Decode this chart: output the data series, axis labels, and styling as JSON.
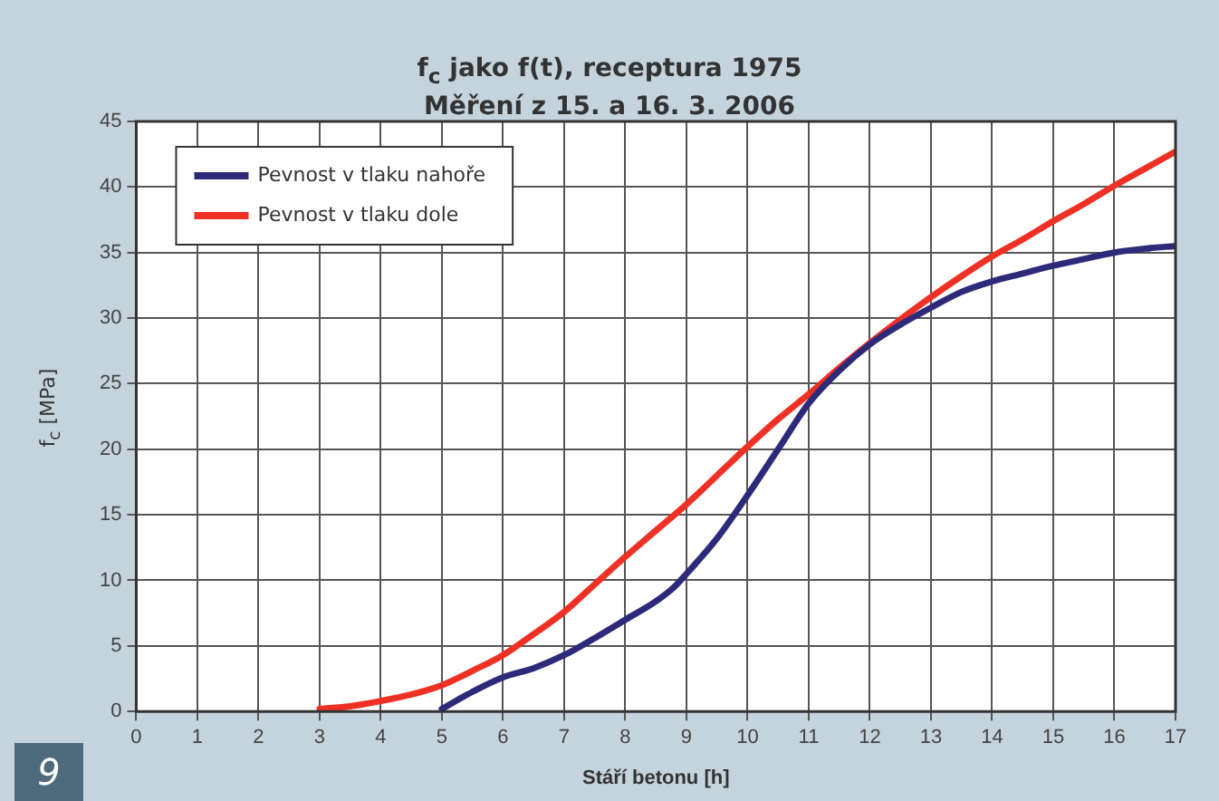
{
  "chart_data": {
    "type": "line",
    "title": "f$_{c}$ jako f(t), receptura 1975",
    "subtitle": "Měření z 15. a 16. 3. 2006",
    "xlabel": "Stáří betonu [h]",
    "ylabel": "f$_{c}$ [MPa]",
    "annotations": [
      "9"
    ],
    "xlim": [
      0,
      17
    ],
    "xticks": [
      0,
      1,
      2,
      3,
      4,
      5,
      6,
      7,
      8,
      9,
      10,
      11,
      12,
      13,
      14,
      15,
      16,
      17
    ],
    "ylim": [
      0,
      45
    ],
    "yticks": [
      0,
      5,
      10,
      15,
      20,
      25,
      30,
      35,
      40,
      45
    ],
    "grid": true,
    "legend": "top left",
    "marker": "none",
    "line_style": "solid",
    "series": [
      {
        "name": "Pevnost v tlaku nahoře",
        "color": "#2e2a7a",
        "x": [
          5,
          5.5,
          6,
          6.5,
          7,
          7.5,
          8,
          8.5,
          8.8,
          9,
          9.5,
          10,
          10.5,
          11,
          11.5,
          12,
          12.5,
          13,
          13.5,
          14,
          14.5,
          15,
          15.5,
          16,
          16.5,
          17
        ],
        "values": [
          0.2,
          1.5,
          2.6,
          3.3,
          4.3,
          5.6,
          7.0,
          8.4,
          9.5,
          10.5,
          13.2,
          16.5,
          20,
          23.5,
          26,
          28,
          29.5,
          30.8,
          32.0,
          32.8,
          33.4,
          34.0,
          34.5,
          35.0,
          35.3,
          35.5
        ]
      },
      {
        "name": "Pevnost v tlaku dole",
        "color": "#ee3124",
        "x": [
          3,
          3.5,
          4,
          4.5,
          5,
          5.5,
          6,
          6.5,
          7,
          7.5,
          8,
          8.5,
          9,
          9.5,
          10,
          10.5,
          11,
          11.5,
          12,
          12.5,
          13,
          13.5,
          14,
          14.5,
          15,
          15.5,
          16,
          16.5,
          17
        ],
        "values": [
          0.2,
          0.4,
          0.8,
          1.3,
          2.0,
          3.1,
          4.3,
          5.9,
          7.6,
          9.7,
          11.8,
          13.8,
          15.8,
          18.0,
          20.2,
          22.3,
          24.2,
          26.2,
          28.1,
          29.9,
          31.6,
          33.2,
          34.7,
          36.0,
          37.4,
          38.7,
          40.1,
          41.4,
          42.7
        ]
      }
    ]
  }
}
